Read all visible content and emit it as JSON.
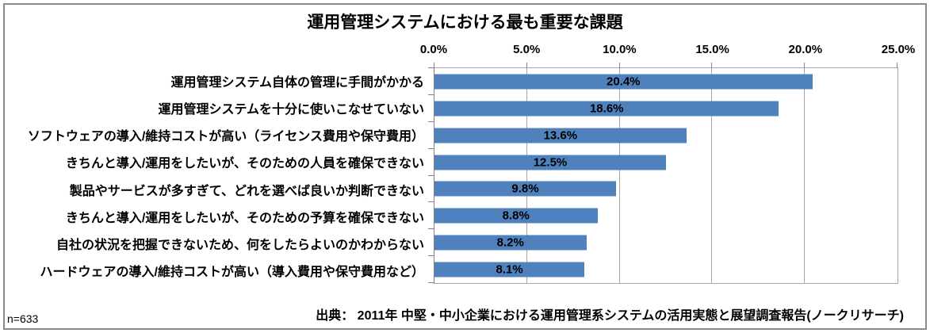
{
  "footnote_left": "n=633",
  "source": "出典： 2011年 中堅・中小企業における運用管理系システムの活用実態と展望調査報告(ノークリサーチ)",
  "chart_data": {
    "type": "bar",
    "orientation": "horizontal",
    "title": "運用管理システムにおける最も重要な課題",
    "xlabel": "",
    "ylabel": "",
    "xlim": [
      0,
      25
    ],
    "axis_position": "top",
    "grid": true,
    "axis_ticks": [
      "0.0%",
      "5.0%",
      "10.0%",
      "15.0%",
      "20.0%",
      "25.0%"
    ],
    "categories": [
      "運用管理システム自体の管理に手間がかかる",
      "運用管理システムを十分に使いこなせていない",
      "ソフトウェアの導入/維持コストが高い（ライセンス費用や保守費用）",
      "きちんと導入/運用をしたいが、そのための人員を確保できない",
      "製品やサービスが多すぎて、どれを選べば良いか判断できない",
      "きちんと導入/運用をしたいが、そのための予算を確保できない",
      "自社の状況を把握できないため、何をしたらよいのかわからない",
      "ハードウェアの導入/維持コストが高い（導入費用や保守費用など）"
    ],
    "values": [
      20.4,
      18.6,
      13.6,
      12.5,
      9.8,
      8.8,
      8.2,
      8.1
    ],
    "value_labels": [
      "20.4%",
      "18.6%",
      "13.6%",
      "12.5%",
      "9.8%",
      "8.8%",
      "8.2%",
      "8.1%"
    ],
    "value_label_position": "center",
    "bar_color": "#4f81bd",
    "gridline_color": "#a6a6a6",
    "axis_color": "#808080",
    "text_color": "#000000",
    "legend": "none"
  }
}
